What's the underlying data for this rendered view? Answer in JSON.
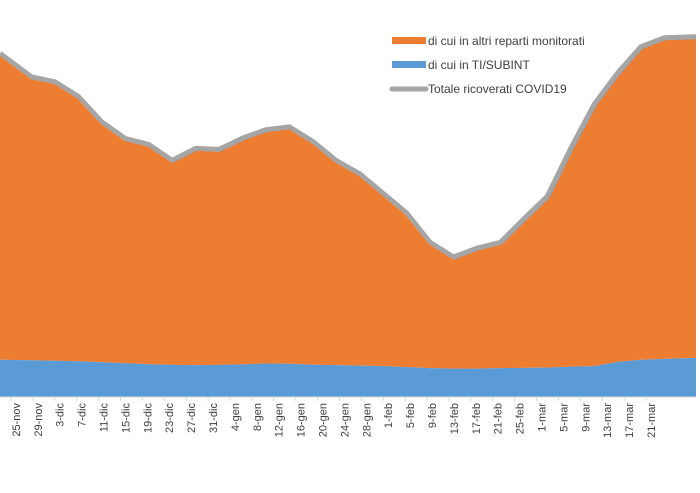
{
  "chart_data": {
    "type": "area",
    "stacked": true,
    "x": [
      "25-nov",
      "29-nov",
      "3-dic",
      "7-dic",
      "11-dic",
      "15-dic",
      "19-dic",
      "23-dic",
      "27-dic",
      "31-dic",
      "4-gen",
      "8-gen",
      "12-gen",
      "16-gen",
      "20-gen",
      "24-gen",
      "28-gen",
      "1-feb",
      "5-feb",
      "9-feb",
      "13-feb",
      "17-feb",
      "21-feb",
      "25-feb",
      "1-mar",
      "5-mar",
      "9-mar",
      "13-mar",
      "17-mar",
      "21-mar"
    ],
    "series": [
      {
        "name": "di cui in TI/SUBINT",
        "color": "#5b9bd5",
        "values": [
          3800,
          3750,
          3700,
          3650,
          3550,
          3450,
          3350,
          3280,
          3250,
          3280,
          3330,
          3420,
          3400,
          3300,
          3250,
          3200,
          3150,
          3050,
          2950,
          2900,
          2900,
          2950,
          2980,
          3000,
          3100,
          3150,
          3600,
          3800,
          3900,
          4000
        ]
      },
      {
        "name": "di cui in altri reparti monitorati",
        "color": "#ed7d31",
        "values": [
          31300,
          28950,
          28500,
          27050,
          24550,
          22950,
          22450,
          20900,
          22150,
          22020,
          23120,
          23880,
          24200,
          22800,
          20900,
          19600,
          17650,
          15750,
          12850,
          11400,
          12300,
          12850,
          15220,
          17500,
          22300,
          26750,
          29500,
          32000,
          32800,
          32800
        ]
      }
    ],
    "total": {
      "name": "Totale ricoverati COVID19",
      "color": "#a5a5a5",
      "values": [
        35100,
        32700,
        32200,
        30700,
        28100,
        26400,
        25800,
        24180,
        25400,
        25300,
        26450,
        27300,
        27600,
        26100,
        24150,
        22800,
        20800,
        18800,
        15800,
        14300,
        15200,
        15800,
        18200,
        20500,
        25400,
        29900,
        33100,
        35800,
        36700,
        36800
      ]
    },
    "ylim": [
      0,
      38000
    ],
    "legend_position": "top-right",
    "grid": false
  }
}
